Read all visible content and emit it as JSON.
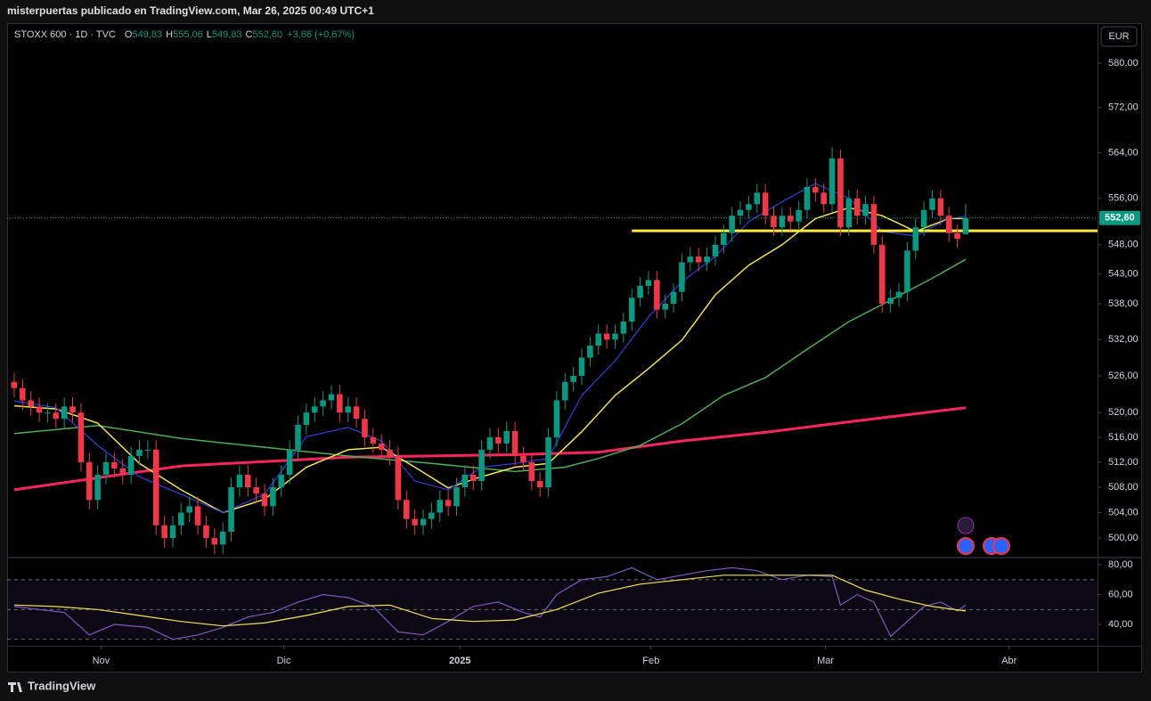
{
  "header": {
    "text": "misterpuertas publicado en TradingView.com, Mar 26, 2025 00:49 UTC+1"
  },
  "footer": {
    "brand": "TradingView"
  },
  "chart_data": {
    "type": "candlestick",
    "legend": {
      "symbol": "STOXX 600 · 1D · TVC",
      "ohlc": [
        {
          "key": "O",
          "value": "549,83"
        },
        {
          "key": "H",
          "value": "555,06"
        },
        {
          "key": "L",
          "value": "549,83"
        },
        {
          "key": "C",
          "value": "552,60"
        }
      ],
      "change": "+3,66 (+0,67%)"
    },
    "currency": "EUR",
    "log_scale": true,
    "up_color": "#089981",
    "down_color": "#f23645",
    "open": [
      525,
      524,
      522,
      521,
      520,
      520,
      519,
      521,
      520,
      512,
      506,
      510,
      512,
      511,
      510,
      513,
      514,
      514,
      502,
      500,
      502,
      504,
      505,
      502,
      500,
      499,
      501,
      508,
      510,
      508,
      507,
      505,
      508,
      510,
      514,
      518,
      520,
      521,
      522,
      523,
      520,
      521,
      519,
      516,
      515,
      514,
      513,
      506,
      503,
      502,
      503,
      504,
      506,
      505,
      508,
      510,
      509,
      514,
      516,
      515,
      517,
      513,
      512,
      509,
      508,
      516,
      522,
      525,
      526,
      529,
      531,
      533,
      532,
      533,
      535,
      539,
      541,
      542,
      537,
      538,
      540,
      545,
      546,
      545,
      546,
      548,
      550,
      553,
      554,
      555,
      557,
      553,
      551,
      553,
      552,
      554,
      558,
      557,
      555,
      563,
      551,
      556,
      553,
      555,
      548,
      538,
      539,
      540,
      547,
      551,
      554,
      556,
      553,
      550,
      549.83
    ],
    "high": [
      526.5,
      525.5,
      523.5,
      522.5,
      521.5,
      521.5,
      522.5,
      522.5,
      521.5,
      513.5,
      511.5,
      513.5,
      513.5,
      512.5,
      514.5,
      515.5,
      515.5,
      515.5,
      503.5,
      503.5,
      505.5,
      506.5,
      506.5,
      503.5,
      501.5,
      502.5,
      509.5,
      511.5,
      511.5,
      509.5,
      508.5,
      509.5,
      511.5,
      515.5,
      519.5,
      521.5,
      522.5,
      523.5,
      524.5,
      524.5,
      522.5,
      522.5,
      520.5,
      517.5,
      516.5,
      515.5,
      514.5,
      507.5,
      504.5,
      504.5,
      505.5,
      507.5,
      507.5,
      509.5,
      511.5,
      511.5,
      515.5,
      517.5,
      517.5,
      518.5,
      518.5,
      514.5,
      513.5,
      510.5,
      517.5,
      523.5,
      526.5,
      527.5,
      530.5,
      532.5,
      534.5,
      534.5,
      534.5,
      536.5,
      540.5,
      542.5,
      543.5,
      543.5,
      539.5,
      541.5,
      546.5,
      547.5,
      547.5,
      547.5,
      549.5,
      551.5,
      554.5,
      555.5,
      556.5,
      558.5,
      558.5,
      554.5,
      554.5,
      554.5,
      555.5,
      559.5,
      559.5,
      558.5,
      565,
      564.5,
      557.5,
      557.5,
      556.5,
      556.5,
      549.5,
      540.5,
      541.5,
      548.5,
      552.5,
      555.5,
      557.5,
      557.5,
      554.5,
      551.5,
      555.06
    ],
    "low": [
      522.5,
      520.5,
      519.5,
      518.5,
      518.5,
      517.5,
      517.5,
      518.5,
      510.5,
      504.5,
      504.5,
      508.5,
      509.5,
      508.5,
      508.5,
      511.5,
      512.5,
      500.5,
      498.5,
      498.5,
      500.5,
      502.5,
      500.5,
      498.5,
      497.5,
      497.5,
      499.5,
      506.5,
      506.5,
      505.5,
      503.5,
      503.5,
      506.5,
      508.5,
      512.5,
      516.5,
      518.5,
      519.5,
      520.5,
      518.5,
      518.5,
      517.5,
      514.5,
      513.5,
      512.5,
      511.5,
      504.5,
      501.5,
      500.5,
      500.5,
      501.5,
      502.5,
      503.5,
      503.5,
      506.5,
      507.5,
      507.5,
      512.5,
      513.5,
      513.5,
      511.5,
      510.5,
      507.5,
      506.5,
      506.5,
      514.5,
      520.5,
      523.5,
      524.5,
      527.5,
      529.5,
      530.5,
      530.5,
      531.5,
      533.5,
      537.5,
      539.5,
      535.5,
      535.5,
      536.5,
      538.5,
      543.5,
      543.5,
      543.5,
      544.5,
      546.5,
      548.5,
      551.5,
      552.5,
      553.5,
      551.5,
      549.5,
      549.5,
      550.5,
      550.5,
      552.5,
      555.5,
      553.5,
      553.5,
      549.5,
      549.5,
      551.5,
      551.5,
      546.5,
      536.5,
      536.5,
      537.5,
      538.5,
      545.5,
      549.5,
      552.5,
      551.5,
      548.5,
      547.5,
      549.83
    ],
    "close": [
      524,
      522,
      521,
      520,
      520,
      519,
      521,
      520,
      512,
      506,
      510,
      512,
      511,
      510,
      513,
      514,
      514,
      502,
      500,
      502,
      504,
      505,
      502,
      500,
      499,
      501,
      508,
      510,
      508,
      507,
      505,
      508,
      510,
      514,
      518,
      520,
      521,
      522,
      523,
      520,
      521,
      519,
      516,
      515,
      514,
      513,
      506,
      503,
      502,
      503,
      504,
      506,
      505,
      508,
      510,
      509,
      514,
      516,
      515,
      517,
      513,
      512,
      509,
      508,
      516,
      522,
      525,
      526,
      529,
      531,
      533,
      532,
      533,
      535,
      539,
      541,
      542,
      537,
      538,
      540,
      545,
      546,
      545,
      546,
      548,
      550,
      553,
      554,
      555,
      557,
      553,
      551,
      553,
      552,
      554,
      558,
      557,
      555,
      563,
      551,
      556,
      553,
      555,
      548,
      538,
      539,
      540,
      547,
      551,
      554,
      556,
      553,
      550,
      549,
      552.6
    ],
    "lines": [
      {
        "color": "#f7245f",
        "width": 3,
        "x": [
          0,
          20,
          40,
          60,
          70,
          80,
          90,
          100,
          114
        ],
        "values": [
          507.6,
          511.4,
          512.8,
          513.2,
          513.6,
          515.4,
          516.8,
          518.5,
          520.8
        ]
      },
      {
        "color": "#4caf50",
        "width": 1.5,
        "x": [
          0,
          10,
          20,
          30,
          40,
          50,
          60,
          66,
          70,
          75,
          80,
          85,
          90,
          95,
          100,
          105,
          110,
          114
        ],
        "values": [
          516.6,
          517.9,
          515.8,
          514.4,
          513,
          511.8,
          510.5,
          511.2,
          512.6,
          514.7,
          518.2,
          522.8,
          525.7,
          530.4,
          535,
          538.6,
          542.3,
          545.5
        ]
      },
      {
        "color": "#f5e44a",
        "width": 1.5,
        "x": [
          0,
          5,
          10,
          15,
          20,
          25,
          30,
          35,
          40,
          44,
          48,
          52,
          56,
          60,
          64,
          68,
          72,
          76,
          80,
          84,
          88,
          92,
          96,
          100,
          104,
          108,
          112,
          114
        ],
        "values": [
          521.1,
          520.6,
          518.3,
          511.8,
          507.6,
          504,
          506.1,
          511.2,
          514,
          514.4,
          511.2,
          507.9,
          509.7,
          511.2,
          511.8,
          516.9,
          522.8,
          527.2,
          531.9,
          539.5,
          544.5,
          548,
          552.5,
          554.4,
          553,
          550.3,
          552.5,
          552.5
        ]
      },
      {
        "color": "#2d3fe0",
        "width": 1.2,
        "x": [
          0,
          5,
          10,
          15,
          20,
          25,
          30,
          35,
          40,
          44,
          48,
          52,
          56,
          60,
          64,
          68,
          72,
          76,
          80,
          84,
          88,
          92,
          96,
          100,
          104,
          108,
          112,
          114
        ],
        "values": [
          521.9,
          520.8,
          514.7,
          509.7,
          506.9,
          504,
          506.9,
          516.1,
          517.6,
          515.4,
          509,
          507.6,
          511.2,
          511.8,
          512.6,
          522.8,
          528.5,
          535.8,
          541.7,
          546,
          552,
          555.4,
          558.6,
          556,
          550.3,
          549.5,
          552.5,
          552.9
        ]
      }
    ],
    "level": {
      "value": 550.4,
      "x_start": 74,
      "color": "#ffeb3b"
    },
    "last_price": {
      "value": 552.6,
      "label": "552,60"
    },
    "xlim": [
      -0.85,
      129.8
    ],
    "ylim": [
      497.1,
      587.3
    ],
    "yticks": [
      {
        "value": 500,
        "label": "500,00"
      },
      {
        "value": 504,
        "label": "504,00"
      },
      {
        "value": 508,
        "label": "508,00"
      },
      {
        "value": 512,
        "label": "512,00"
      },
      {
        "value": 516,
        "label": "516,00"
      },
      {
        "value": 520,
        "label": "520,00"
      },
      {
        "value": 526,
        "label": "526,00"
      },
      {
        "value": 532,
        "label": "532,00"
      },
      {
        "value": 538,
        "label": "538,00"
      },
      {
        "value": 543,
        "label": "543,00"
      },
      {
        "value": 548,
        "label": "548,00"
      },
      {
        "value": 556,
        "label": "556,00"
      },
      {
        "value": 564,
        "label": "564,00"
      },
      {
        "value": 572,
        "label": "572,00"
      },
      {
        "value": 580,
        "label": "580,00"
      }
    ],
    "xticks": [
      {
        "value": 10.4,
        "label": "Nov"
      },
      {
        "value": 32.3,
        "label": "Dic"
      },
      {
        "value": 53.4,
        "label": "2025"
      },
      {
        "value": 76.3,
        "label": "Feb"
      },
      {
        "value": 97.2,
        "label": "Mar"
      },
      {
        "value": 119.2,
        "label": "Abr"
      }
    ],
    "rsi": {
      "ylim": [
        25.7,
        84.2
      ],
      "yticks": [
        {
          "value": 40,
          "label": "40,00"
        },
        {
          "value": 60,
          "label": "60,00"
        },
        {
          "value": 80,
          "label": "80,00"
        }
      ],
      "bands": [
        70,
        50,
        30
      ],
      "series": [
        {
          "color": "#7e57c2",
          "x": [
            0,
            3,
            6,
            9,
            12,
            16,
            19,
            22,
            25,
            28,
            31,
            34,
            37,
            40,
            43,
            46,
            49,
            52,
            55,
            58,
            61,
            63,
            65,
            68,
            71,
            74,
            77,
            80,
            83,
            86,
            89,
            92,
            95,
            98,
            99,
            101,
            103,
            105,
            107,
            109,
            111,
            113,
            114
          ],
          "values": [
            52,
            50,
            48,
            33,
            40,
            38,
            30,
            33,
            38,
            45,
            48,
            55,
            60,
            58,
            52,
            35,
            33,
            42,
            52,
            55,
            48,
            45,
            60,
            70,
            72,
            78,
            70,
            73,
            76,
            78,
            76,
            70,
            73,
            72,
            53,
            60,
            55,
            32,
            42,
            52,
            55,
            49,
            53
          ]
        },
        {
          "color": "#f5e44a",
          "x": [
            0,
            5,
            10,
            15,
            20,
            25,
            30,
            35,
            40,
            45,
            50,
            55,
            60,
            65,
            70,
            75,
            80,
            85,
            90,
            95,
            98,
            102,
            106,
            110,
            114
          ],
          "values": [
            53,
            52,
            50,
            46,
            42,
            39,
            41,
            46,
            52,
            53,
            44,
            42,
            43,
            50,
            61,
            67,
            70,
            73,
            73,
            73,
            73,
            63,
            57,
            52,
            49
          ]
        }
      ]
    }
  }
}
